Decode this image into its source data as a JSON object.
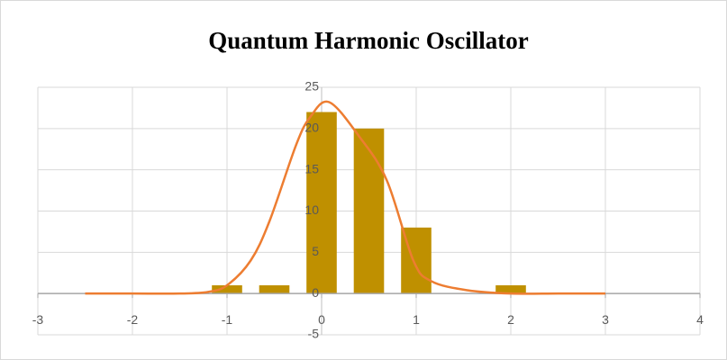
{
  "chart_data": {
    "type": "bar",
    "title": "Quantum Harmonic Oscillator",
    "x": [
      -1,
      -0.5,
      0,
      0.5,
      1,
      2
    ],
    "values": [
      1,
      1,
      22,
      20,
      8,
      1
    ],
    "color": "#bf9000",
    "line": {
      "type": "line",
      "color": "#ed7d31",
      "x": [
        -2.5,
        -2,
        -1.5,
        -1.2,
        -1,
        -0.75,
        -0.55,
        -0.27,
        -0.12,
        0.08,
        0.4,
        0.69,
        0.97,
        1.16,
        1.54,
        2,
        2.5,
        3
      ],
      "values": [
        0,
        0,
        0,
        0.2,
        1,
        4,
        8.8,
        18,
        21.4,
        23.2,
        19,
        13.7,
        4,
        1.5,
        0.4,
        0,
        0,
        0
      ]
    },
    "xlim": [
      -3,
      4
    ],
    "xticks": [
      -3,
      -2,
      -1,
      0,
      1,
      2,
      3,
      4
    ],
    "ylim": [
      -5,
      25
    ],
    "yticks": [
      -5,
      0,
      5,
      10,
      15,
      20,
      25
    ],
    "grid": true
  }
}
